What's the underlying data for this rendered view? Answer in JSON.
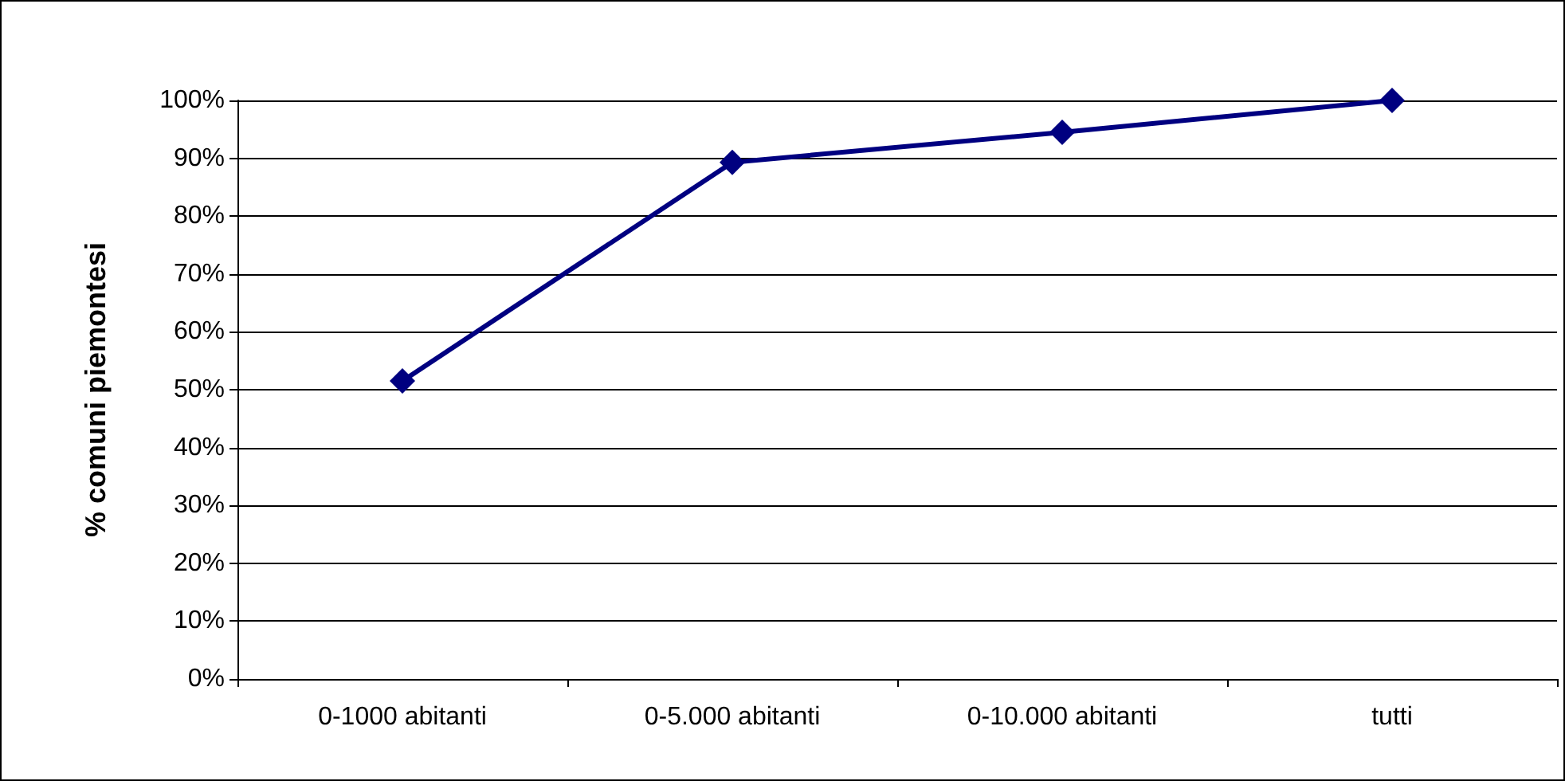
{
  "chart_data": {
    "type": "line",
    "ylabel": "% comuni piemontesi",
    "categories": [
      "0-1000 abitanti",
      "0-5.000 abitanti",
      "0-10.000 abitanti",
      "tutti"
    ],
    "series": [
      {
        "color": "#000080",
        "values": [
          51.5,
          89.3,
          94.5,
          100
        ]
      }
    ],
    "ylim": [
      0,
      100
    ],
    "yticks": [
      {
        "value": 0,
        "label": "0%"
      },
      {
        "value": 10,
        "label": "10%"
      },
      {
        "value": 20,
        "label": "20%"
      },
      {
        "value": 30,
        "label": "30%"
      },
      {
        "value": 40,
        "label": "40%"
      },
      {
        "value": 50,
        "label": "50%"
      },
      {
        "value": 60,
        "label": "60%"
      },
      {
        "value": 70,
        "label": "70%"
      },
      {
        "value": 80,
        "label": "80%"
      },
      {
        "value": 90,
        "label": "90%"
      },
      {
        "value": 100,
        "label": "100%"
      }
    ],
    "grid": "y",
    "marker": "diamond",
    "line_style": "solid"
  }
}
